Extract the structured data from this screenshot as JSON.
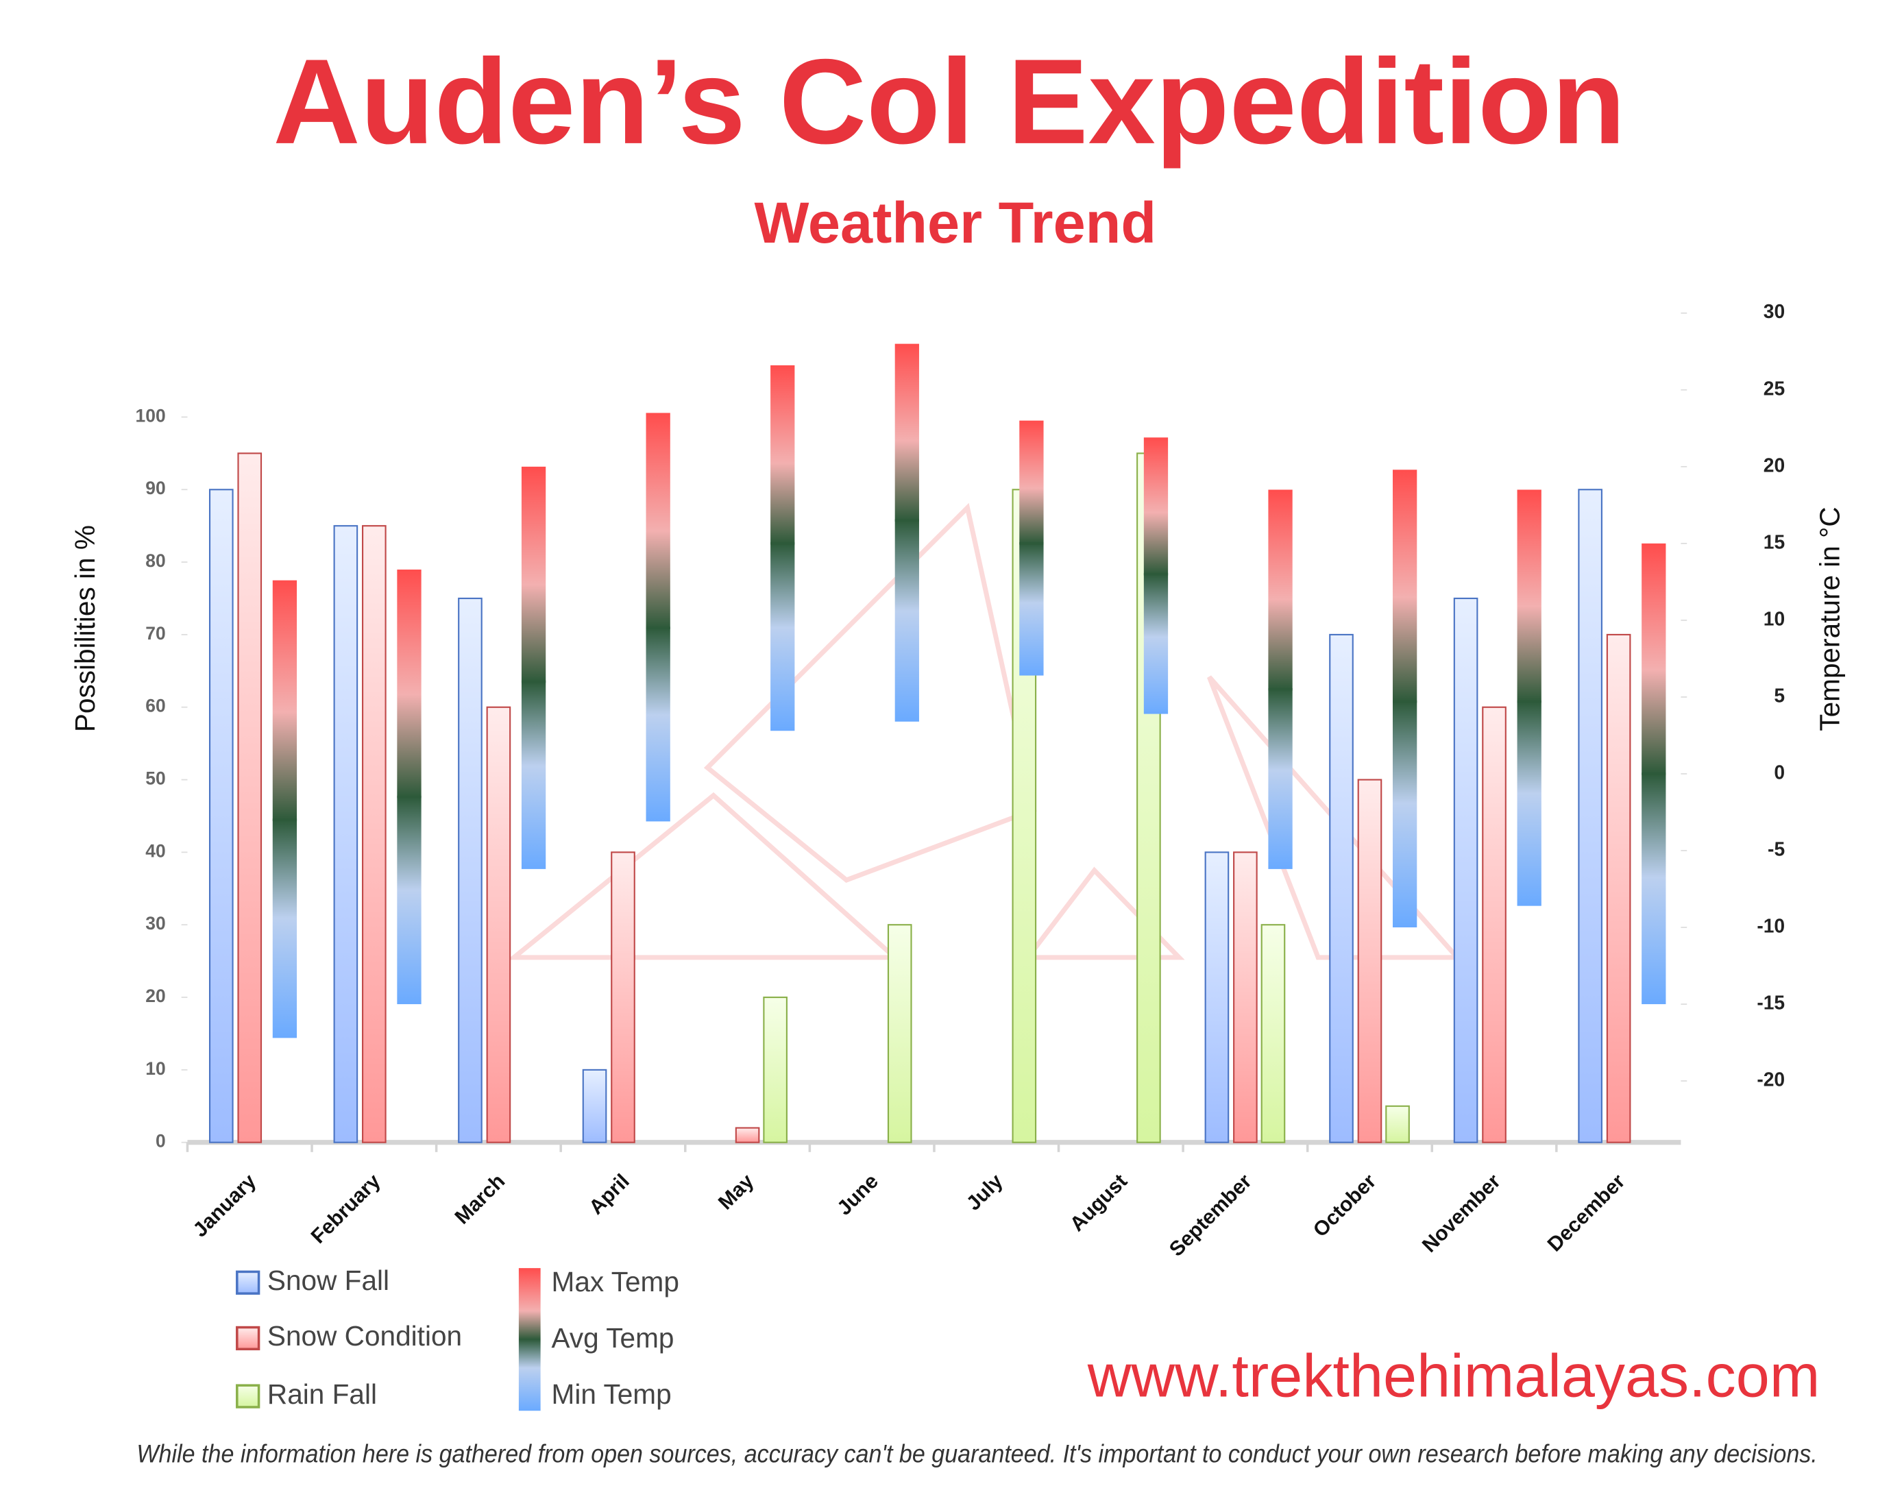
{
  "chart_data": {
    "type": "bar",
    "title": "Auden’s Col Expedition",
    "subtitle": "Weather Trend",
    "y_label": "Possibilities in %",
    "y2_label": "Temperature in °C",
    "categories": [
      "January",
      "February",
      "March",
      "April",
      "May",
      "June",
      "July",
      "August",
      "September",
      "October",
      "November",
      "December"
    ],
    "series": [
      {
        "name": "Snow Fall",
        "color": "#4a74c4",
        "values": [
          90,
          85,
          75,
          10,
          0,
          0,
          0,
          0,
          40,
          70,
          75,
          90
        ]
      },
      {
        "name": "Snow Condition",
        "color": "#c04848",
        "values": [
          95,
          85,
          60,
          40,
          2,
          0,
          0,
          0,
          40,
          50,
          60,
          70
        ]
      },
      {
        "name": "Rain Fall",
        "color": "#8ab04a",
        "values": [
          0,
          0,
          0,
          0,
          20,
          30,
          90,
          95,
          30,
          5,
          0,
          0
        ]
      },
      {
        "name": "Max Temp",
        "color": "#ff4d4d",
        "axis": "y2",
        "values": [
          12.6,
          13.3,
          20,
          23.5,
          26.6,
          28,
          23,
          21.9,
          18.5,
          19.8,
          18.5,
          15
        ]
      },
      {
        "name": "Avg Temp",
        "color": "#2d5a3a",
        "axis": "y2",
        "values": [
          -3,
          -1.5,
          6,
          9.5,
          15,
          16.5,
          15,
          13,
          5.5,
          4.7,
          4.7,
          0
        ]
      },
      {
        "name": "Min Temp",
        "color": "#6aaaff",
        "axis": "y2",
        "values": [
          -17.2,
          -15,
          -6.2,
          -3.1,
          2.8,
          3.4,
          6.4,
          3.9,
          -6.2,
          -10,
          -8.6,
          -15
        ]
      }
    ],
    "ylim": [
      0,
      114.33
    ],
    "yticks": [
      0,
      10,
      20,
      30,
      40,
      50,
      60,
      70,
      80,
      90,
      100
    ],
    "y2lim": [
      -24,
      30
    ],
    "y2ticks": [
      -20,
      -15,
      -10,
      -5,
      0,
      5,
      10,
      15,
      20,
      25,
      30
    ]
  },
  "footer": {
    "website": "www.trekthehimalayas.com",
    "disclaimer": "While the information here is gathered from open sources, accuracy can't be guaranteed. It's important to conduct your own research before making any decisions."
  }
}
